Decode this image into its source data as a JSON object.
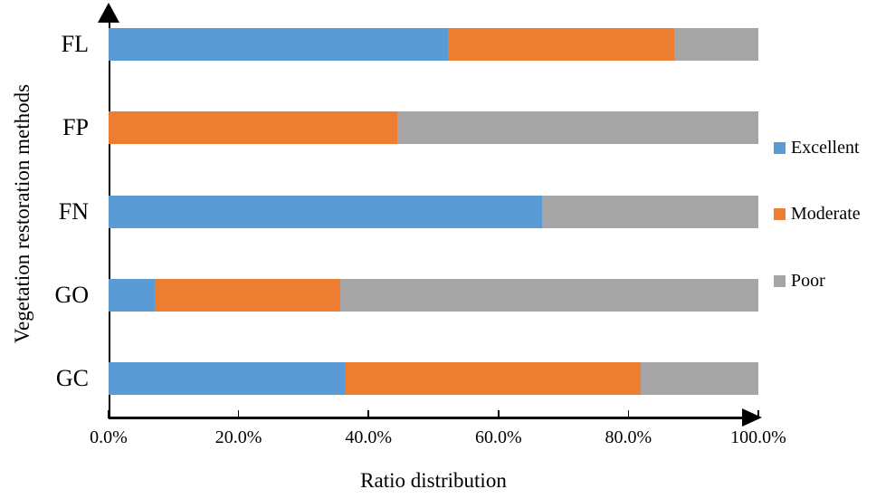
{
  "chart_data": {
    "type": "bar",
    "orientation": "horizontal",
    "stacked": true,
    "title": "",
    "xlabel": "Ratio distribution",
    "ylabel": "Vegetation restoration methods",
    "categories": [
      "FL",
      "FP",
      "FN",
      "GO",
      "GC"
    ],
    "series": [
      {
        "name": "Excellent",
        "color": "#5B9BD5",
        "values": [
          52.2,
          0.0,
          66.7,
          7.1,
          36.4
        ]
      },
      {
        "name": "Moderate",
        "color": "#ED7D31",
        "values": [
          34.8,
          44.4,
          0.0,
          28.6,
          45.5
        ]
      },
      {
        "name": "Poor",
        "color": "#A5A5A5",
        "values": [
          13.0,
          55.6,
          33.3,
          64.3,
          18.1
        ]
      }
    ],
    "x_ticks": [
      {
        "value": 0,
        "label": "0.0%"
      },
      {
        "value": 20,
        "label": "20.0%"
      },
      {
        "value": 40,
        "label": "40.0%"
      },
      {
        "value": 60,
        "label": "60.0%"
      },
      {
        "value": 80,
        "label": "80.0%"
      },
      {
        "value": 100,
        "label": "100.0%"
      }
    ],
    "xlim": [
      0,
      100
    ],
    "grid": false,
    "legend_position": "right",
    "axis_color": "#000000",
    "background_color": "#ffffff"
  }
}
